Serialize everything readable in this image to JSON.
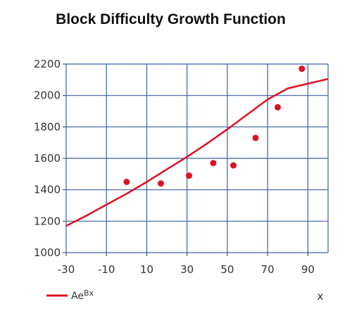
{
  "chart_data": {
    "type": "scatter",
    "title": "Block Difficulty Growth Function",
    "xlabel": "x",
    "ylabel": "",
    "xlim": [
      -30,
      100
    ],
    "ylim": [
      1000,
      2200
    ],
    "x_ticks": [
      "-30",
      "-10",
      "10",
      "30",
      "50",
      "70",
      "90"
    ],
    "y_ticks": [
      "1000",
      "1200",
      "1400",
      "1600",
      "1800",
      "2000",
      "2200"
    ],
    "grid": true,
    "legend_placement": "bottom-left",
    "series": [
      {
        "name": "",
        "kind": "scatter",
        "color": "#dd1122",
        "points": [
          {
            "x": 0,
            "y": 1450
          },
          {
            "x": 17,
            "y": 1440
          },
          {
            "x": 31,
            "y": 1490
          },
          {
            "x": 43,
            "y": 1570
          },
          {
            "x": 53,
            "y": 1555
          },
          {
            "x": 64,
            "y": 1730
          },
          {
            "x": 75,
            "y": 1925
          },
          {
            "x": 87,
            "y": 2170
          }
        ]
      },
      {
        "name": "Ae^Bx",
        "legend_label": "AeBx",
        "kind": "line",
        "color": "#dd1122",
        "points": [
          {
            "x": -30,
            "y": 1170
          },
          {
            "x": -20,
            "y": 1235
          },
          {
            "x": -10,
            "y": 1305
          },
          {
            "x": 0,
            "y": 1375
          },
          {
            "x": 10,
            "y": 1450
          },
          {
            "x": 20,
            "y": 1530
          },
          {
            "x": 30,
            "y": 1610
          },
          {
            "x": 40,
            "y": 1695
          },
          {
            "x": 50,
            "y": 1785
          },
          {
            "x": 60,
            "y": 1880
          },
          {
            "x": 70,
            "y": 1975
          },
          {
            "x": 80,
            "y": 2045
          },
          {
            "x": 90,
            "y": 2075
          },
          {
            "x": 100,
            "y": 2105
          }
        ]
      }
    ]
  }
}
